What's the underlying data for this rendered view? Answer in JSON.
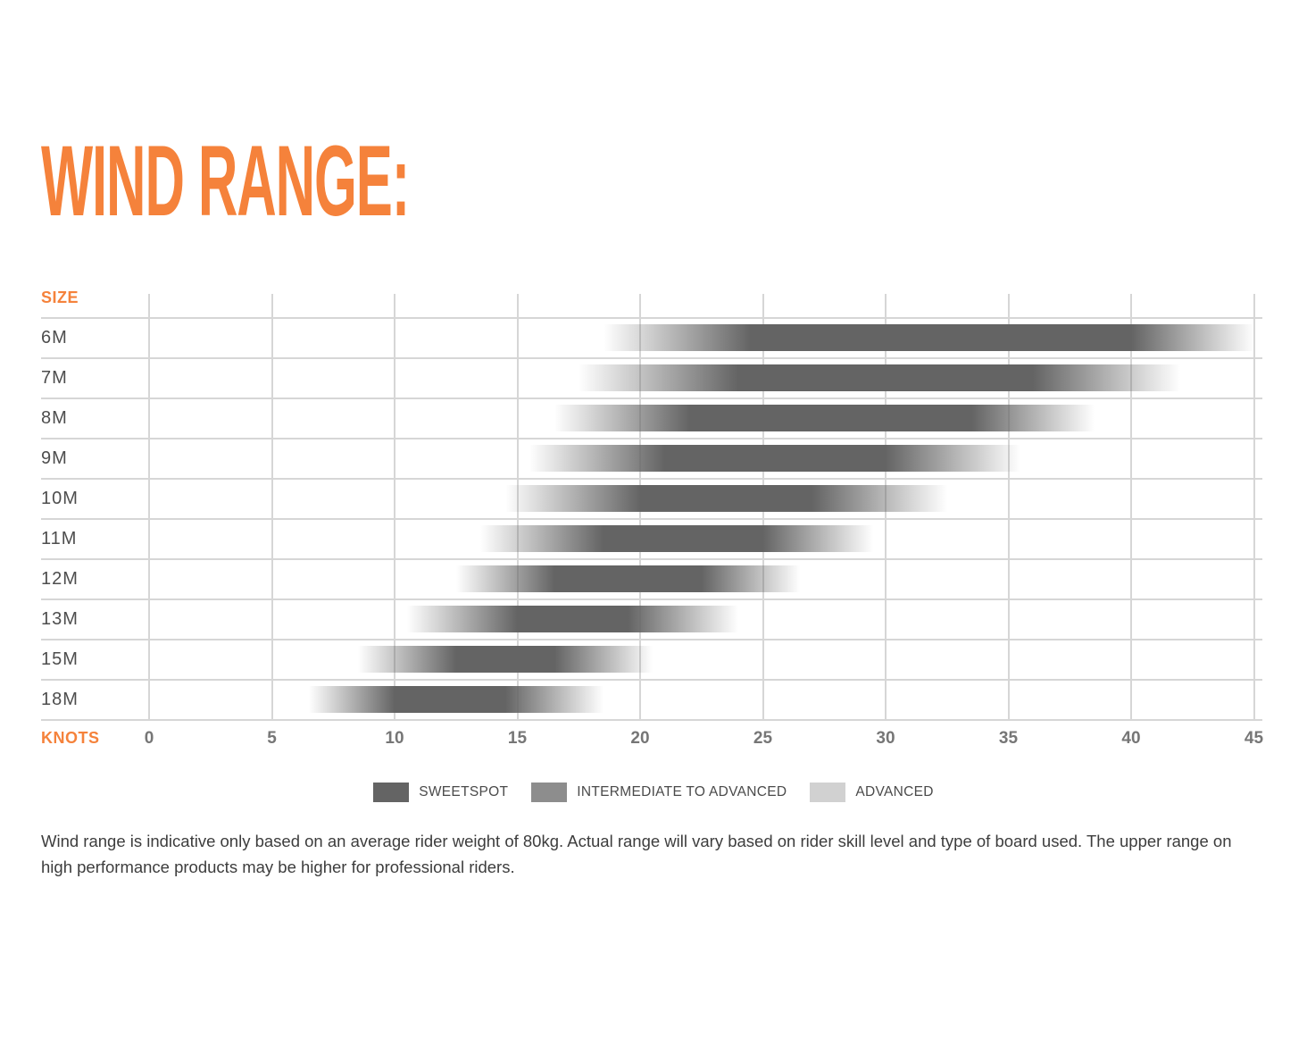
{
  "title": "WIND RANGE:",
  "chart_data": {
    "type": "bar",
    "subtype": "horizontal-gradient-range",
    "y_axis_label": "SIZE",
    "x_axis_label": "KNOTS",
    "x_unit": "knots",
    "x_min": 0,
    "x_max": 45,
    "x_ticks": [
      0,
      5,
      10,
      15,
      20,
      25,
      30,
      35,
      40,
      45
    ],
    "grid": true,
    "legend_position": "bottom-center",
    "legend": [
      {
        "label": "SWEETSPOT",
        "color": "#646464"
      },
      {
        "label": "INTERMEDIATE TO ADVANCED",
        "color": "#8d8d8d"
      },
      {
        "label": "ADVANCED",
        "color": "#d1d1d1"
      }
    ],
    "series": [
      {
        "size": "6M",
        "range_start": 18.5,
        "sweetspot_start": 24.5,
        "sweetspot_end": 40,
        "range_end": 45
      },
      {
        "size": "7M",
        "range_start": 17.5,
        "sweetspot_start": 24,
        "sweetspot_end": 36,
        "range_end": 42
      },
      {
        "size": "8M",
        "range_start": 16.5,
        "sweetspot_start": 22,
        "sweetspot_end": 33.5,
        "range_end": 38.5
      },
      {
        "size": "9M",
        "range_start": 15.5,
        "sweetspot_start": 21,
        "sweetspot_end": 30,
        "range_end": 35.5
      },
      {
        "size": "10M",
        "range_start": 14.5,
        "sweetspot_start": 20,
        "sweetspot_end": 27,
        "range_end": 32.5
      },
      {
        "size": "11M",
        "range_start": 13.5,
        "sweetspot_start": 18.5,
        "sweetspot_end": 25,
        "range_end": 29.5
      },
      {
        "size": "12M",
        "range_start": 12.5,
        "sweetspot_start": 16.5,
        "sweetspot_end": 22.5,
        "range_end": 26.5
      },
      {
        "size": "13M",
        "range_start": 10.5,
        "sweetspot_start": 15,
        "sweetspot_end": 19.5,
        "range_end": 24
      },
      {
        "size": "15M",
        "range_start": 8.5,
        "sweetspot_start": 12.5,
        "sweetspot_end": 16.5,
        "range_end": 20.5
      },
      {
        "size": "18M",
        "range_start": 6.5,
        "sweetspot_start": 10,
        "sweetspot_end": 14.5,
        "range_end": 18.5
      }
    ]
  },
  "footer": {
    "text": "Wind range is indicative only based on an average rider weight of 80kg. Actual range will vary based on rider skill level and type of board used. The upper range on high performance products may be higher for professional riders."
  },
  "colors": {
    "accent_orange": "#f5823b",
    "grid_gray": "#d6d6d6",
    "bar_dark": "#646464",
    "bar_mid": "#8d8d8d",
    "bar_light": "#d1d1d1",
    "row_label_gray": "#4d4d4d",
    "tick_gray": "#767676",
    "text_gray": "#3d3d3d"
  }
}
